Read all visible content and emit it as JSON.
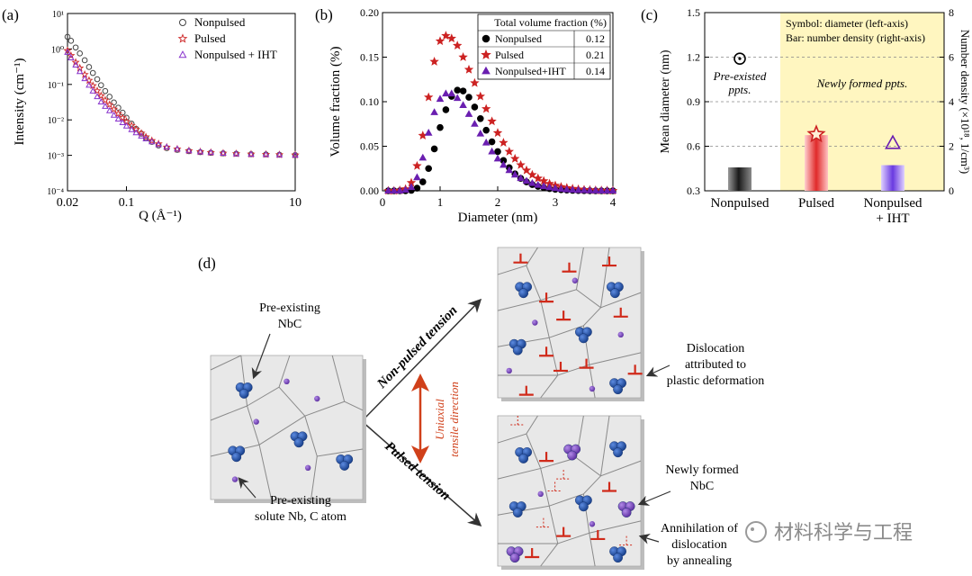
{
  "panels": {
    "a": {
      "letter": "(a)",
      "chart_data": {
        "type": "scatter",
        "xscale": "log",
        "yscale": "log",
        "xlim": [
          0.02,
          10
        ],
        "ylim": [
          0.0001,
          10
        ],
        "xlabel": "Q (Å⁻¹)",
        "ylabel": "Intensity (cm⁻¹)",
        "xticks": [
          {
            "v": 0.02,
            "label": "0.02"
          },
          {
            "v": 0.1,
            "label": "0.1"
          },
          {
            "v": 10,
            "label": "10"
          }
        ],
        "yticks": [
          {
            "v": 10,
            "label": "10¹"
          },
          {
            "v": 1,
            "label": "10⁰"
          },
          {
            "v": 0.1,
            "label": "10⁻¹"
          },
          {
            "v": 0.01,
            "label": "10⁻²"
          },
          {
            "v": 0.001,
            "label": "10⁻³"
          },
          {
            "v": 0.0001,
            "label": "10⁻⁴"
          }
        ],
        "legend_position": "top-right",
        "series": [
          {
            "name": "Nonpulsed",
            "marker": "circle-open",
            "color": "#444444",
            "points": [
              [
                0.02,
                2.2
              ],
              [
                0.022,
                1.7
              ],
              [
                0.025,
                1.1
              ],
              [
                0.028,
                0.75
              ],
              [
                0.032,
                0.48
              ],
              [
                0.036,
                0.31
              ],
              [
                0.04,
                0.21
              ],
              [
                0.045,
                0.14
              ],
              [
                0.05,
                0.095
              ],
              [
                0.056,
                0.065
              ],
              [
                0.063,
                0.045
              ],
              [
                0.071,
                0.031
              ],
              [
                0.08,
                0.022
              ],
              [
                0.09,
                0.016
              ],
              [
                0.1,
                0.0115
              ],
              [
                0.115,
                0.0078
              ],
              [
                0.13,
                0.0056
              ],
              [
                0.15,
                0.0041
              ],
              [
                0.17,
                0.0031
              ],
              [
                0.2,
                0.0024
              ],
              [
                0.24,
                0.0019
              ],
              [
                0.3,
                0.0016
              ],
              [
                0.4,
                0.00143
              ],
              [
                0.55,
                0.00131
              ],
              [
                0.75,
                0.00123
              ],
              [
                1.0,
                0.00118
              ],
              [
                1.4,
                0.00114
              ],
              [
                2.0,
                0.00111
              ],
              [
                3.0,
                0.00108
              ],
              [
                4.5,
                0.00106
              ],
              [
                6.5,
                0.00104
              ],
              [
                10,
                0.00102
              ]
            ]
          },
          {
            "name": "Pulsed",
            "marker": "star-open",
            "color": "#d03030",
            "points": [
              [
                0.02,
                0.9
              ],
              [
                0.022,
                0.65
              ],
              [
                0.025,
                0.42
              ],
              [
                0.028,
                0.29
              ],
              [
                0.032,
                0.19
              ],
              [
                0.036,
                0.13
              ],
              [
                0.04,
                0.092
              ],
              [
                0.045,
                0.066
              ],
              [
                0.05,
                0.048
              ],
              [
                0.056,
                0.036
              ],
              [
                0.063,
                0.027
              ],
              [
                0.071,
                0.02
              ],
              [
                0.08,
                0.015
              ],
              [
                0.09,
                0.0115
              ],
              [
                0.1,
                0.009
              ],
              [
                0.115,
                0.0069
              ],
              [
                0.13,
                0.0054
              ],
              [
                0.15,
                0.0042
              ],
              [
                0.17,
                0.0033
              ],
              [
                0.2,
                0.0026
              ],
              [
                0.24,
                0.0021
              ],
              [
                0.3,
                0.0017
              ],
              [
                0.4,
                0.0015
              ],
              [
                0.55,
                0.00135
              ],
              [
                0.75,
                0.00126
              ],
              [
                1.0,
                0.0012
              ],
              [
                1.4,
                0.00115
              ],
              [
                2.0,
                0.00111
              ],
              [
                3.0,
                0.00108
              ],
              [
                4.5,
                0.00106
              ],
              [
                6.5,
                0.00104
              ],
              [
                10,
                0.00102
              ]
            ]
          },
          {
            "name": "Nonpulsed + IHT",
            "marker": "triangle-open",
            "color": "#8833cc",
            "points": [
              [
                0.02,
                0.8
              ],
              [
                0.022,
                0.56
              ],
              [
                0.025,
                0.35
              ],
              [
                0.028,
                0.23
              ],
              [
                0.032,
                0.145
              ],
              [
                0.036,
                0.095
              ],
              [
                0.04,
                0.065
              ],
              [
                0.045,
                0.045
              ],
              [
                0.05,
                0.032
              ],
              [
                0.056,
                0.024
              ],
              [
                0.063,
                0.018
              ],
              [
                0.071,
                0.0135
              ],
              [
                0.08,
                0.0105
              ],
              [
                0.09,
                0.0083
              ],
              [
                0.1,
                0.0067
              ],
              [
                0.115,
                0.0053
              ],
              [
                0.13,
                0.0043
              ],
              [
                0.15,
                0.0035
              ],
              [
                0.17,
                0.0029
              ],
              [
                0.2,
                0.0024
              ],
              [
                0.24,
                0.002
              ],
              [
                0.3,
                0.0017
              ],
              [
                0.4,
                0.0015
              ],
              [
                0.55,
                0.00134
              ],
              [
                0.75,
                0.00125
              ],
              [
                1.0,
                0.00119
              ],
              [
                1.4,
                0.00114
              ],
              [
                2.0,
                0.0011
              ],
              [
                3.0,
                0.00107
              ],
              [
                4.5,
                0.00105
              ],
              [
                6.5,
                0.00103
              ],
              [
                10,
                0.00101
              ]
            ]
          }
        ]
      }
    },
    "b": {
      "letter": "(b)",
      "chart_data": {
        "type": "scatter",
        "xlim": [
          0,
          4
        ],
        "ylim": [
          0,
          0.2
        ],
        "xlabel": "Diameter (nm)",
        "ylabel": "Volume fraction (%)",
        "xticks": [
          {
            "v": 0,
            "label": "0"
          },
          {
            "v": 1,
            "label": "1"
          },
          {
            "v": 2,
            "label": "2"
          },
          {
            "v": 3,
            "label": "3"
          },
          {
            "v": 4,
            "label": "4"
          }
        ],
        "yticks": [
          {
            "v": 0,
            "label": "0.00"
          },
          {
            "v": 0.05,
            "label": "0.05"
          },
          {
            "v": 0.1,
            "label": "0.10"
          },
          {
            "v": 0.15,
            "label": "0.15"
          },
          {
            "v": 0.2,
            "label": "0.20"
          }
        ],
        "legend_position": "top-right",
        "legend_title": "Total volume fraction (%)",
        "series": [
          {
            "name": "Nonpulsed",
            "total": "0.12",
            "marker": "circle-filled",
            "color": "#000000",
            "x": [
              0.1,
              0.2,
              0.3,
              0.4,
              0.5,
              0.6,
              0.7,
              0.8,
              0.9,
              1.0,
              1.1,
              1.2,
              1.3,
              1.4,
              1.5,
              1.6,
              1.7,
              1.8,
              1.9,
              2.0,
              2.1,
              2.2,
              2.3,
              2.4,
              2.5,
              2.6,
              2.7,
              2.8,
              2.9,
              3.0,
              3.1,
              3.2,
              3.3,
              3.4,
              3.5,
              3.6,
              3.7,
              3.8,
              3.9,
              4.0
            ],
            "y": [
              0,
              0,
              0,
              0,
              0.0005,
              0.003,
              0.01,
              0.025,
              0.047,
              0.071,
              0.091,
              0.106,
              0.113,
              0.112,
              0.105,
              0.094,
              0.081,
              0.068,
              0.055,
              0.044,
              0.034,
              0.026,
              0.019,
              0.014,
              0.01,
              0.007,
              0.005,
              0.0035,
              0.0025,
              0.0017,
              0.0012,
              0.0008,
              0.0005,
              0.0003,
              0.0002,
              0.0001,
              0,
              0,
              0,
              0
            ]
          },
          {
            "name": "Pulsed",
            "total": "0.21",
            "marker": "star-filled",
            "color": "#cc2222",
            "x": [
              0.1,
              0.2,
              0.3,
              0.4,
              0.5,
              0.6,
              0.7,
              0.8,
              0.9,
              1.0,
              1.1,
              1.2,
              1.3,
              1.4,
              1.5,
              1.6,
              1.7,
              1.8,
              1.9,
              2.0,
              2.1,
              2.2,
              2.3,
              2.4,
              2.5,
              2.6,
              2.7,
              2.8,
              2.9,
              3.0,
              3.1,
              3.2,
              3.3,
              3.4,
              3.5,
              3.6,
              3.7,
              3.8,
              3.9,
              4.0
            ],
            "y": [
              0,
              0,
              0.0005,
              0.002,
              0.009,
              0.028,
              0.062,
              0.105,
              0.145,
              0.168,
              0.174,
              0.171,
              0.163,
              0.15,
              0.136,
              0.121,
              0.106,
              0.092,
              0.078,
              0.065,
              0.054,
              0.044,
              0.036,
              0.029,
              0.023,
              0.018,
              0.014,
              0.011,
              0.008,
              0.006,
              0.0045,
              0.0033,
              0.0024,
              0.0017,
              0.0012,
              0.0009,
              0.0006,
              0.0004,
              0.0003,
              0.0002
            ]
          },
          {
            "name": "Nonpulsed+IHT",
            "total": "0.14",
            "marker": "triangle-filled",
            "color": "#6a1fb0",
            "x": [
              0.1,
              0.2,
              0.3,
              0.4,
              0.5,
              0.6,
              0.7,
              0.8,
              0.9,
              1.0,
              1.1,
              1.2,
              1.3,
              1.4,
              1.5,
              1.6,
              1.7,
              1.8,
              1.9,
              2.0,
              2.1,
              2.2,
              2.3,
              2.4,
              2.5,
              2.6,
              2.7,
              2.8,
              2.9,
              3.0,
              3.1,
              3.2,
              3.3,
              3.4,
              3.5,
              3.6,
              3.7,
              3.8,
              3.9,
              4.0
            ],
            "y": [
              0,
              0,
              0,
              0.001,
              0.004,
              0.015,
              0.037,
              0.065,
              0.088,
              0.103,
              0.109,
              0.109,
              0.104,
              0.096,
              0.086,
              0.075,
              0.064,
              0.054,
              0.044,
              0.036,
              0.029,
              0.023,
              0.018,
              0.014,
              0.011,
              0.0085,
              0.0065,
              0.005,
              0.0038,
              0.0028,
              0.002,
              0.0014,
              0.001,
              0.0007,
              0.0005,
              0.0003,
              0.0002,
              0.0001,
              0,
              0
            ]
          }
        ]
      }
    },
    "c": {
      "letter": "(c)",
      "chart_data": {
        "type": "bar",
        "categories": [
          [
            "Nonpulsed"
          ],
          [
            "Pulsed"
          ],
          [
            "Nonpulsed",
            "+ IHT"
          ]
        ],
        "bar_values": [
          1.05,
          2.5,
          1.15
        ],
        "bar_colors": [
          "#3a3a3a",
          "#e23b3b",
          "#8a5ae0"
        ],
        "symbol_values": [
          1.19,
          0.68,
          0.62
        ],
        "symbol_markers": [
          "circle-dot",
          "star-open",
          "triangle-open"
        ],
        "symbol_colors": [
          "#000000",
          "#cc2222",
          "#6a1fb0"
        ],
        "ylabel_left": "Mean diameter (nm)",
        "ylabel_right": "Number density (×10¹⁸, 1/cm³)",
        "ylim_left": [
          0.3,
          1.5
        ],
        "ylim_right": [
          0,
          8
        ],
        "yticks_left": [
          {
            "v": 0.3,
            "label": "0.3"
          },
          {
            "v": 0.6,
            "label": "0.6"
          },
          {
            "v": 0.9,
            "label": "0.9"
          },
          {
            "v": 1.2,
            "label": "1.2"
          },
          {
            "v": 1.5,
            "label": "1.5"
          }
        ],
        "yticks_right": [
          {
            "v": 0,
            "label": "0"
          },
          {
            "v": 2,
            "label": "2"
          },
          {
            "v": 4,
            "label": "4"
          },
          {
            "v": 6,
            "label": "6"
          },
          {
            "v": 8,
            "label": "8"
          }
        ],
        "note_lines": [
          "Symbol: diameter (left-axis)",
          "Bar: number density (right-axis)"
        ],
        "annotation_left": [
          "Pre-existed",
          "ppts."
        ],
        "annotation_right": "Newly formed ppts.",
        "highlight_color": "#fff6c0"
      }
    },
    "d": {
      "letter": "(d)",
      "labels": {
        "pre_nbc": [
          "Pre-existing",
          "NbC"
        ],
        "pre_solute": [
          "Pre-existing",
          "solute Nb, C atom"
        ],
        "nonpulsed_tension": "Non-pulsed tension",
        "pulsed_tension": "Pulsed tension",
        "uniaxial": [
          "Uniaxial",
          "tensile direction"
        ],
        "dislocation": [
          "Dislocation",
          "attributed to",
          "plastic deformation"
        ],
        "new_nbc": [
          "Newly formed",
          "NbC"
        ],
        "annihilation": [
          "Annihilation of",
          "dislocation",
          "by annealing"
        ]
      }
    }
  },
  "watermark": "材料科学与工程",
  "colors": {
    "precip_blue": "#1f4fa6",
    "solute_purple": "#7a45c2",
    "dislocation_red": "#d02a1a",
    "grain_bg": "#e8e8e8"
  }
}
